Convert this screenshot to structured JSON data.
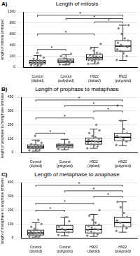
{
  "chart_data": [
    {
      "type": "boxplot",
      "panel": "A)",
      "title": "Length of mitosis",
      "y_label": "length of mitosis (minutes)",
      "categories": [
        "Control (diploid)",
        "Control (polyploid)",
        "H922 (diploid)",
        "H922 (polyploid)"
      ],
      "ylim": [
        0,
        1000
      ],
      "yticks": [
        0,
        200,
        400,
        600,
        800,
        1000
      ],
      "grid": true,
      "color": "#808080",
      "boxes": [
        {
          "min": 20,
          "q1": 60,
          "median": 85,
          "q3": 120,
          "max": 210
        },
        {
          "min": 40,
          "q1": 80,
          "median": 110,
          "q3": 150,
          "max": 230
        },
        {
          "min": 60,
          "q1": 130,
          "median": 170,
          "q3": 230,
          "max": 360
        },
        {
          "min": 120,
          "q1": 290,
          "median": 380,
          "q3": 480,
          "max": 760
        }
      ],
      "points": [
        [
          30,
          45,
          50,
          55,
          60,
          62,
          70,
          75,
          80,
          85,
          88,
          95,
          100,
          110,
          120,
          130,
          150,
          170,
          210,
          260
        ],
        [
          50,
          70,
          85,
          100,
          110,
          120,
          140,
          160,
          200,
          240
        ],
        [
          60,
          80,
          100,
          120,
          130,
          140,
          150,
          160,
          170,
          180,
          190,
          200,
          220,
          240,
          260,
          300,
          340,
          420
        ],
        [
          130,
          200,
          250,
          290,
          320,
          360,
          380,
          400,
          440,
          480,
          520,
          600,
          700,
          760
        ]
      ],
      "significance": [
        {
          "groups": [
            0,
            1
          ],
          "y": 320,
          "label": "*"
        },
        {
          "groups": [
            0,
            2
          ],
          "y": 600,
          "label": "*"
        },
        {
          "groups": [
            2,
            3
          ],
          "y": 820,
          "label": "*"
        },
        {
          "groups": [
            1,
            3
          ],
          "y": 880,
          "label": "*"
        },
        {
          "groups": [
            0,
            3
          ],
          "y": 940,
          "label": "*"
        }
      ]
    },
    {
      "type": "boxplot",
      "panel": "B)",
      "title": "Length of prophase to metaphase",
      "y_label": "length of prophase to metaphase (minutes)",
      "categories": [
        "Control (diploid)",
        "Control (polyploid)",
        "H922 (diploid)",
        "H922 (polyploid)"
      ],
      "ylim": [
        0,
        400
      ],
      "yticks": [
        0,
        100,
        200,
        300,
        400
      ],
      "grid": true,
      "color": "#808080",
      "boxes": [
        {
          "min": 10,
          "q1": 30,
          "median": 40,
          "q3": 55,
          "max": 90
        },
        {
          "min": 20,
          "q1": 35,
          "median": 48,
          "q3": 60,
          "max": 95
        },
        {
          "min": 30,
          "q1": 60,
          "median": 80,
          "q3": 105,
          "max": 170
        },
        {
          "min": 50,
          "q1": 85,
          "median": 110,
          "q3": 140,
          "max": 230
        }
      ],
      "points": [
        [
          15,
          20,
          25,
          30,
          32,
          35,
          38,
          40,
          42,
          45,
          50,
          55,
          60,
          70,
          85,
          120
        ],
        [
          25,
          35,
          45,
          50,
          60,
          75
        ],
        [
          30,
          45,
          55,
          60,
          70,
          75,
          80,
          85,
          90,
          100,
          110,
          120,
          140,
          160,
          200
        ],
        [
          55,
          80,
          95,
          110,
          120,
          140,
          170,
          230,
          340
        ]
      ],
      "significance": [
        {
          "groups": [
            0,
            1
          ],
          "y": 140,
          "label": "*"
        },
        {
          "groups": [
            0,
            2
          ],
          "y": 250,
          "label": "*"
        },
        {
          "groups": [
            2,
            3
          ],
          "y": 300,
          "label": "*"
        },
        {
          "groups": [
            1,
            3
          ],
          "y": 340,
          "label": "*"
        },
        {
          "groups": [
            0,
            3
          ],
          "y": 380,
          "label": "*"
        }
      ]
    },
    {
      "type": "boxplot",
      "panel": "C)",
      "title": "Length of metaphase to anaphase",
      "y_label": "length of metaphase to anaphase (minutes)",
      "categories": [
        "Control (diploid)",
        "Control (polyploid)",
        "H922 (diploid)",
        "H922 (polyploid)"
      ],
      "ylim": [
        0,
        400
      ],
      "yticks": [
        0,
        100,
        200,
        300,
        400
      ],
      "grid": true,
      "color": "#808080",
      "boxes": [
        {
          "min": 5,
          "q1": 20,
          "median": 35,
          "q3": 55,
          "max": 110
        },
        {
          "min": 15,
          "q1": 40,
          "median": 60,
          "q3": 90,
          "max": 150
        },
        {
          "min": 10,
          "q1": 35,
          "median": 60,
          "q3": 90,
          "max": 170
        },
        {
          "min": 40,
          "q1": 80,
          "median": 110,
          "q3": 150,
          "max": 260
        }
      ],
      "points": [
        [
          8,
          12,
          18,
          22,
          28,
          32,
          35,
          40,
          45,
          50,
          55,
          65,
          80,
          100,
          130
        ],
        [
          20,
          40,
          55,
          65,
          80,
          120,
          150
        ],
        [
          15,
          25,
          35,
          45,
          55,
          60,
          65,
          75,
          85,
          95,
          110,
          130,
          160,
          200
        ],
        [
          50,
          70,
          90,
          110,
          125,
          150,
          180,
          220,
          260
        ]
      ],
      "significance": [
        {
          "groups": [
            0,
            1
          ],
          "y": 200,
          "label": "*"
        },
        {
          "groups": [
            0,
            2
          ],
          "y": 250,
          "label": "*"
        },
        {
          "groups": [
            2,
            3
          ],
          "y": 300,
          "label": "*"
        },
        {
          "groups": [
            1,
            3
          ],
          "y": 340,
          "label": "*"
        },
        {
          "groups": [
            0,
            3
          ],
          "y": 380,
          "label": "*"
        }
      ]
    }
  ]
}
